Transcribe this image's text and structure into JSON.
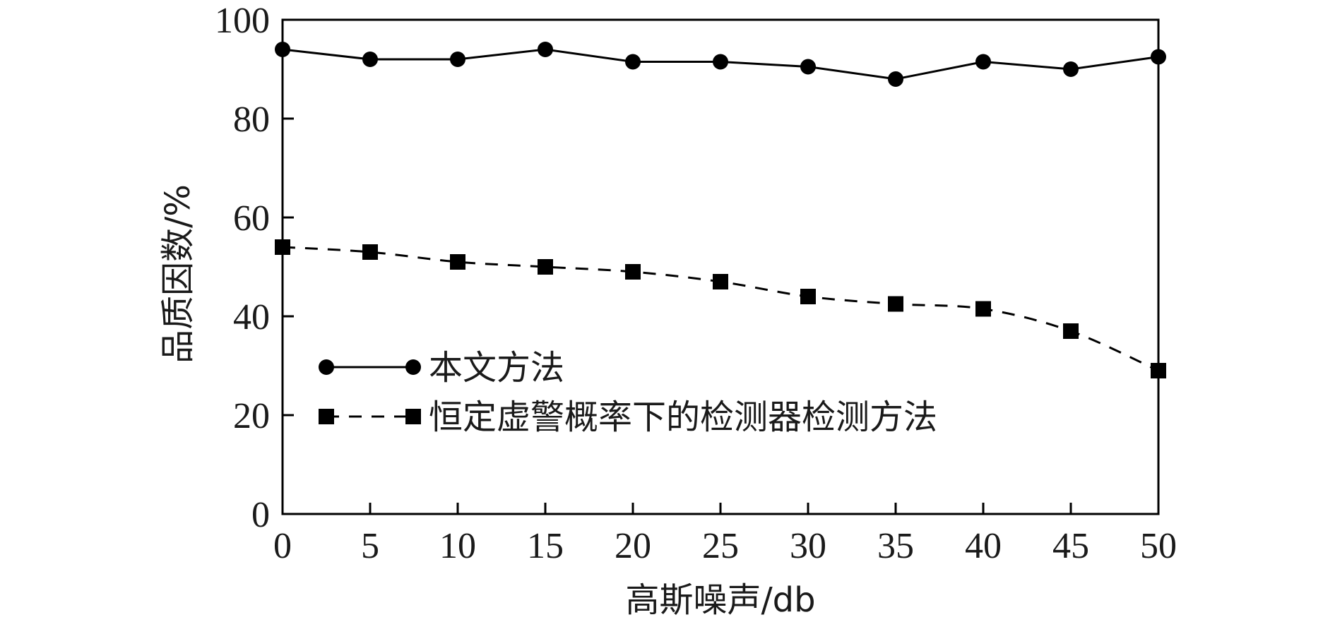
{
  "chart_data": {
    "type": "line",
    "xlabel": "高斯噪声/db",
    "ylabel": "品质因数/%",
    "xlim": [
      0,
      50
    ],
    "ylim": [
      0,
      100
    ],
    "x": [
      0,
      5,
      10,
      15,
      20,
      25,
      30,
      35,
      40,
      45,
      50
    ],
    "x_ticks": [
      "0",
      "5",
      "10",
      "15",
      "20",
      "25",
      "30",
      "35",
      "40",
      "45",
      "50"
    ],
    "y_ticks": [
      "0",
      "20",
      "40",
      "60",
      "80",
      "100"
    ],
    "grid": false,
    "legend_position": "middle-left",
    "series": [
      {
        "name": "本文方法",
        "marker": "circle",
        "line_style": "solid",
        "color": "#000000",
        "values": [
          94,
          92,
          92,
          94,
          91.5,
          91.5,
          90.5,
          88,
          91.5,
          90,
          92.5
        ]
      },
      {
        "name": "恒定虚警概率下的检测器检测方法",
        "marker": "square",
        "line_style": "dashed",
        "color": "#000000",
        "values": [
          54,
          53,
          51,
          50,
          49,
          47,
          44,
          42.5,
          41.5,
          37,
          29
        ]
      }
    ]
  }
}
